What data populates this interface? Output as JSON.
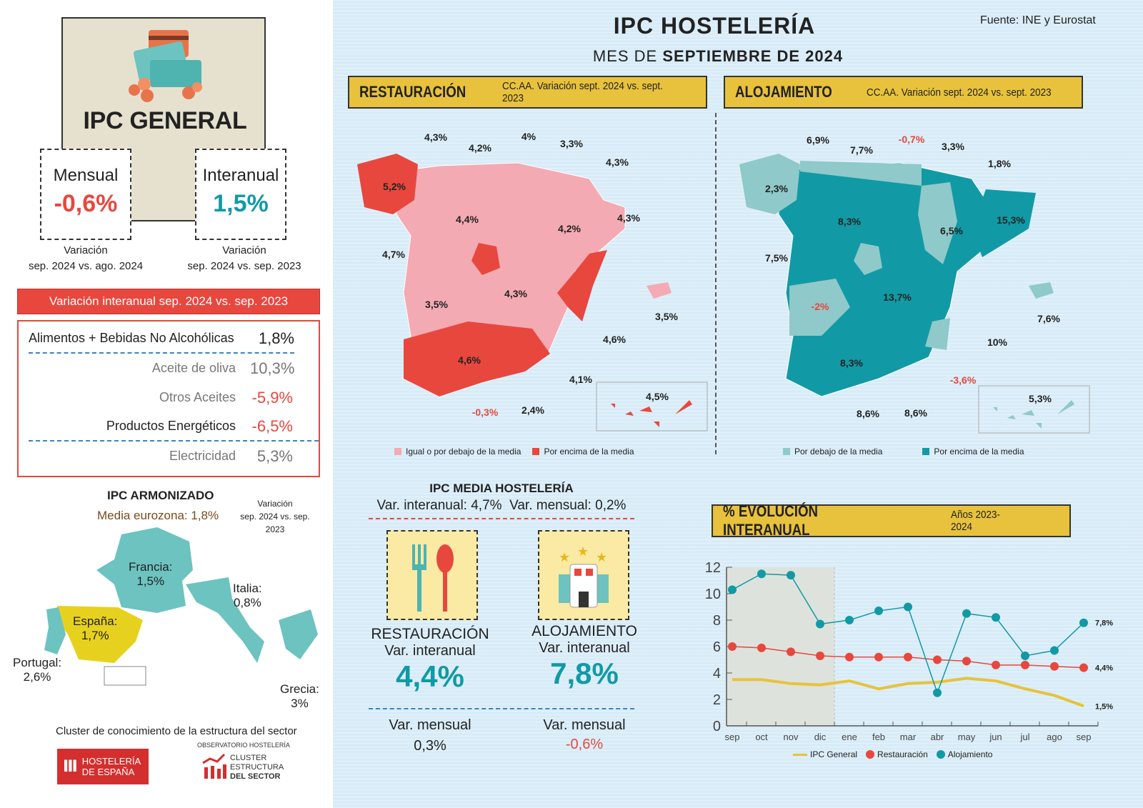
{
  "source": "Fuente: INE y Eurostat",
  "title": "IPC HOSTELERÍA",
  "subtitle_prefix": "MES DE",
  "subtitle_bold": "SEPTIEMBRE DE 2024",
  "ipc_general": {
    "title": "IPC GENERAL",
    "mensual_label": "Mensual",
    "mensual_value": "-0,6%",
    "mensual_caption_1": "Variación",
    "mensual_caption_2": "sep. 2024 vs. ago. 2024",
    "interanual_label": "Interanual",
    "interanual_value": "1,5%",
    "interanual_caption_1": "Variación",
    "interanual_caption_2": "sep. 2024 vs. sep. 2023"
  },
  "variacion_table": {
    "header": "Variación interanual sep. 2024 vs. sep. 2023",
    "rows": [
      {
        "label": "Alimentos + Bebidas No Alcohólicas",
        "value": "1,8%"
      },
      {
        "label": "Aceite de oliva",
        "value": "10,3%"
      },
      {
        "label": "Otros Aceites",
        "value": "-5,9%"
      },
      {
        "label": "Productos Energéticos",
        "value": "-6,5%"
      },
      {
        "label": "Electricidad",
        "value": "5,3%"
      }
    ]
  },
  "ipc_armonizado": {
    "title": "IPC ARMONIZADO",
    "media": "Media eurozona: 1,8%",
    "var_1": "Variación",
    "var_2": "sep. 2024 vs. sep. 2023",
    "countries": [
      {
        "name": "Francia:",
        "value": "1,5%"
      },
      {
        "name": "Italia:",
        "value": "0,8%"
      },
      {
        "name": "España:",
        "value": "1,7%"
      },
      {
        "name": "Portugal:",
        "value": "2,6%"
      },
      {
        "name": "Grecia:",
        "value": "3%"
      }
    ]
  },
  "footer": {
    "cluster_text": "Cluster de conocimiento de la estructura del sector",
    "logo1_line1": "HOSTELERÍA",
    "logo1_line2": "DE ESPAÑA",
    "obs": "OBSERVATORIO HOSTELERÍA",
    "logo2_line1": "CLUSTER",
    "logo2_line2": "ESTRUCTURA",
    "logo2_line3": "DEL SECTOR"
  },
  "restauracion_map": {
    "title": "RESTAURACIÓN",
    "subtitle": "CC.AA. Variación sept. 2024 vs. sept. 2023",
    "labels": [
      "4,3%",
      "4,2%",
      "4%",
      "3,3%",
      "4,3%",
      "5,2%",
      "4,4%",
      "4,2%",
      "4,3%",
      "4,7%",
      "3,5%",
      "4,3%",
      "3,5%",
      "4,6%",
      "4,6%",
      "4,1%",
      "-0,3%",
      "2,4%",
      "4,5%"
    ],
    "legend_low": "Igual o por debajo de la media",
    "legend_high": "Por encima de la media",
    "colors": {
      "low": "#f4aab3",
      "high": "#e8473e"
    }
  },
  "alojamiento_map": {
    "title": "ALOJAMIENTO",
    "subtitle": "CC.AA. Variación sept. 2024 vs. sept. 2023",
    "labels": [
      "6,9%",
      "7,7%",
      "-0,7%",
      "3,3%",
      "1,8%",
      "2,3%",
      "8,3%",
      "6,5%",
      "15,3%",
      "7,5%",
      "-2%",
      "13,7%",
      "7,6%",
      "10%",
      "-3,6%",
      "8,3%",
      "8,6%",
      "8,6%",
      "5,3%"
    ],
    "legend_low": "Por debajo de la media",
    "legend_high": "Por encima de la media",
    "colors": {
      "low": "#8fc9c9",
      "high": "#119aa5"
    }
  },
  "media_hosteleria": {
    "title": "IPC MEDIA HOSTELERÍA",
    "sub": "Var. interanual: 4,7%  Var. mensual: 0,2%",
    "restauracion": {
      "name": "RESTAURACIÓN",
      "label": "Var. interanual",
      "value": "4,4%",
      "mensual_label": "Var. mensual",
      "mensual_value": "0,3%"
    },
    "alojamiento": {
      "name": "ALOJAMIENTO",
      "label": "Var. interanual",
      "value": "7,8%",
      "mensual_label": "Var. mensual",
      "mensual_value": "-0,6%"
    }
  },
  "evolucion": {
    "title": "% EVOLUCIÓN INTERANUAL",
    "subtitle": "Años 2023-2024"
  },
  "chart_data": {
    "type": "line",
    "title": "% EVOLUCIÓN INTERANUAL",
    "subtitle": "Años 2023-2024",
    "categories": [
      "sep",
      "oct",
      "nov",
      "dic",
      "ene",
      "feb",
      "mar",
      "abr",
      "may",
      "jun",
      "jul",
      "ago",
      "sep"
    ],
    "ylim": [
      0,
      12
    ],
    "yticks": [
      0,
      2,
      4,
      6,
      8,
      10,
      12
    ],
    "grid": false,
    "legend": "bottom",
    "shaded_range": [
      "sep",
      "dic"
    ],
    "series": [
      {
        "name": "IPC General",
        "color": "#e8c23c",
        "values": [
          3.5,
          3.5,
          3.2,
          3.1,
          3.4,
          2.8,
          3.2,
          3.3,
          3.6,
          3.4,
          2.8,
          2.3,
          1.5
        ],
        "end_label": "1,5%"
      },
      {
        "name": "Restauración",
        "color": "#e8473e",
        "values": [
          6.0,
          5.9,
          5.6,
          5.3,
          5.2,
          5.2,
          5.2,
          5.0,
          4.9,
          4.6,
          4.6,
          4.5,
          4.4
        ],
        "end_label": "4,4%"
      },
      {
        "name": "Alojamiento",
        "color": "#119aa5",
        "values": [
          10.3,
          11.5,
          11.4,
          7.7,
          8.0,
          8.7,
          9.0,
          2.5,
          8.5,
          8.2,
          5.3,
          5.7,
          7.8
        ],
        "end_label": "7,8%"
      }
    ]
  }
}
